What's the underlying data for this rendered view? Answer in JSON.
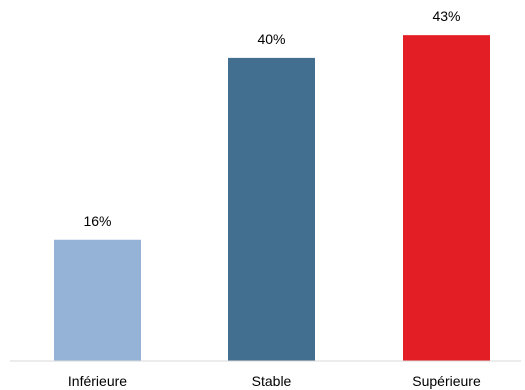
{
  "chart_data": {
    "type": "bar",
    "title": "",
    "xlabel": "",
    "ylabel": "",
    "categories": [
      "Inférieure",
      "Stable",
      "Supérieure"
    ],
    "values": [
      16,
      40,
      43
    ],
    "value_labels": [
      "16%",
      "40%",
      "43%"
    ],
    "colors": [
      "#95b3d7",
      "#426e8f",
      "#e31e24"
    ],
    "ylim": [
      0,
      45
    ],
    "grid": false,
    "legend": "none"
  }
}
